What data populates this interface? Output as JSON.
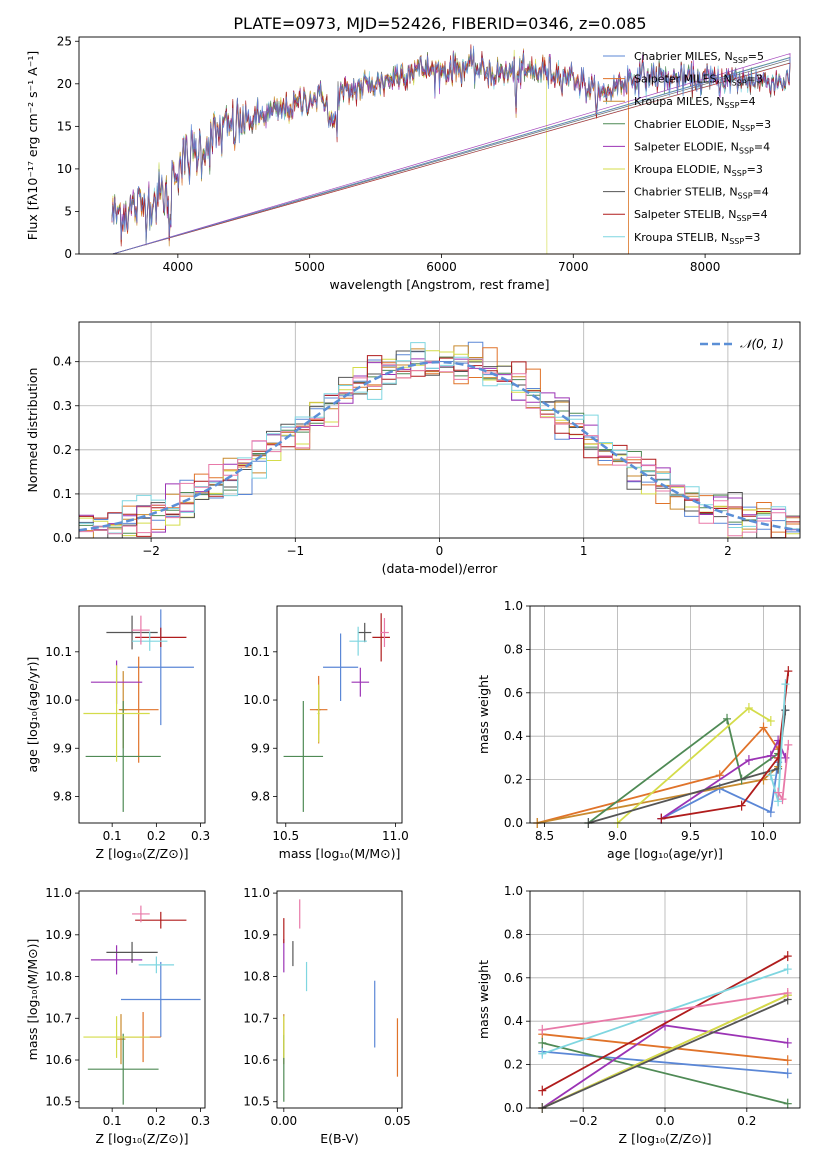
{
  "figure_title": "PLATE=0973, MJD=52426, FIBERID=0346, z=0.085",
  "series": [
    {
      "label": "Chabrier MILES",
      "nssp": "5",
      "color": "#5b87d6"
    },
    {
      "label": "Salpeter MILES",
      "nssp": "3",
      "color": "#e0732a"
    },
    {
      "label": "Kroupa MILES",
      "nssp": "4",
      "color": "#c98a2e"
    },
    {
      "label": "Chabrier ELODIE",
      "nssp": "3",
      "color": "#4f8a55"
    },
    {
      "label": "Salpeter ELODIE",
      "nssp": "4",
      "color": "#9b33b5"
    },
    {
      "label": "Kroupa ELODIE",
      "nssp": "3",
      "color": "#d4dc4a"
    },
    {
      "label": "Chabrier STELIB",
      "nssp": "4",
      "color": "#555555"
    },
    {
      "label": "Salpeter STELIB",
      "nssp": "4",
      "color": "#b01c1c"
    },
    {
      "label": "Kroupa STELIB",
      "nssp": "3",
      "color": "#7fd6e0"
    }
  ],
  "nssp_label": "N",
  "nssp_sub": "SSP",
  "nssp_eq": "=",
  "extra_hist_color": "#e879a8",
  "chart_data": [
    {
      "id": "spectrum",
      "type": "line",
      "xlabel": "wavelength [Angstrom, rest frame]",
      "ylabel": "Flux [fλ10⁻¹⁷ erg cm⁻² s⁻¹ A⁻¹]",
      "xlim": [
        3250,
        8720
      ],
      "ylim": [
        0,
        25.5
      ],
      "xticks": [
        4000,
        5000,
        6000,
        7000,
        8000
      ],
      "yticks": [
        0,
        5,
        10,
        15,
        20,
        25
      ],
      "grid": false,
      "legend": "right",
      "continuum": [
        [
          3500,
          4.5
        ],
        [
          3700,
          5.5
        ],
        [
          3900,
          7
        ],
        [
          3950,
          9
        ],
        [
          4000,
          10.5
        ],
        [
          4100,
          11.5
        ],
        [
          4300,
          14
        ],
        [
          4500,
          15.5
        ],
        [
          4700,
          16.5
        ],
        [
          4900,
          17.5
        ],
        [
          5000,
          18.3
        ],
        [
          5200,
          18.5
        ],
        [
          5400,
          19.8
        ],
        [
          5600,
          20.5
        ],
        [
          5800,
          21.8
        ],
        [
          6000,
          21.5
        ],
        [
          6200,
          22
        ],
        [
          6400,
          21.2
        ],
        [
          6600,
          21.3
        ],
        [
          6800,
          21.5
        ],
        [
          7000,
          20.8
        ],
        [
          7200,
          18.5
        ],
        [
          7400,
          20.5
        ],
        [
          7600,
          21
        ],
        [
          7800,
          20.5
        ],
        [
          8000,
          20.5
        ],
        [
          8200,
          20.5
        ],
        [
          8400,
          20.5
        ],
        [
          8650,
          20.3
        ]
      ]
    },
    {
      "id": "residuals",
      "type": "histogram",
      "xlabel": "(data-model)/error",
      "ylabel": "Normed distribution",
      "xlim": [
        -2.5,
        2.5
      ],
      "ylim": [
        0,
        0.49
      ],
      "xticks": [
        -2,
        -1,
        0,
        1,
        2
      ],
      "xtick_labels": [
        "−2",
        "−1",
        "0",
        "1",
        "2"
      ],
      "yticks": [
        0,
        0.1,
        0.2,
        0.3,
        0.4
      ],
      "ytick_labels": [
        "0.0",
        "0.1",
        "0.2",
        "0.3",
        "0.4"
      ],
      "grid": true,
      "legend": "top-right",
      "legend_label": "𝒩(0, 1)",
      "gaussian": {
        "mean": 0,
        "sigma": 1,
        "color": "#5b8fd6"
      }
    },
    {
      "id": "age_vs_Z",
      "type": "scatter",
      "xlabel": "Z [log₁₀(Z/Z⊙)]",
      "ylabel": "age  [log₁₀(age/yr)]",
      "xlim": [
        0.025,
        0.31
      ],
      "ylim": [
        9.745,
        10.195
      ],
      "xticks": [
        0.1,
        0.2,
        0.3
      ],
      "xtick_labels": [
        "0.1",
        "0.2",
        "0.3"
      ],
      "yticks": [
        9.8,
        9.9,
        10.0,
        10.1
      ],
      "ytick_labels": [
        "9.8",
        "9.9",
        "10.0",
        "10.1"
      ],
      "points": [
        {
          "s": 0,
          "x": 0.21,
          "xe": 0.075,
          "y": 10.068,
          "ye": 0.12
        },
        {
          "s": 1,
          "x": 0.16,
          "xe": 0.045,
          "y": 9.98,
          "ye": 0.11
        },
        {
          "s": 2,
          "x": 0.125,
          "xe": 0.008,
          "y": 9.98,
          "ye": 0.08
        },
        {
          "s": 3,
          "x": 0.125,
          "xe": 0.085,
          "y": 9.883,
          "ye": 0.115
        },
        {
          "s": 4,
          "x": 0.11,
          "xe": 0.058,
          "y": 10.037,
          "ye": 0.045
        },
        {
          "s": 5,
          "x": 0.11,
          "xe": 0.075,
          "y": 9.972,
          "ye": 0.1
        },
        {
          "s": 6,
          "x": 0.145,
          "xe": 0.058,
          "y": 10.14,
          "ye": 0.035
        },
        {
          "s": 7,
          "x": 0.21,
          "xe": 0.058,
          "y": 10.13,
          "ye": 0.02
        },
        {
          "s": 8,
          "x": 0.185,
          "xe": 0.04,
          "y": 10.122,
          "ye": 0.02
        },
        {
          "s": 9,
          "x": 0.165,
          "xe": 0.02,
          "y": 10.145,
          "ye": 0.03
        }
      ]
    },
    {
      "id": "age_vs_mass",
      "type": "scatter",
      "xlabel": "mass [log₁₀(M/M⊙)]",
      "ylabel": "",
      "xlim": [
        10.46,
        11.03
      ],
      "ylim": [
        9.745,
        10.195
      ],
      "xticks": [
        10.5,
        11.0
      ],
      "xtick_labels": [
        "10.5",
        "11.0"
      ],
      "yticks": [
        9.8,
        9.9,
        10.0,
        10.1
      ],
      "ytick_labels": [
        "9.8",
        "9.9",
        "10.0",
        "10.1"
      ],
      "points": [
        {
          "s": 0,
          "x": 10.75,
          "xe": 0.08,
          "y": 10.068,
          "ye": 0.07
        },
        {
          "s": 1,
          "x": 10.65,
          "xe": 0.04,
          "y": 9.98,
          "ye": 0.07
        },
        {
          "s": 2,
          "x": 10.65,
          "xe": 0.01,
          "y": 9.98,
          "ye": 0.05
        },
        {
          "s": 3,
          "x": 10.58,
          "xe": 0.09,
          "y": 9.883,
          "ye": 0.115
        },
        {
          "s": 4,
          "x": 10.84,
          "xe": 0.04,
          "y": 10.037,
          "ye": 0.03
        },
        {
          "s": 5,
          "x": 10.65,
          "xe": 0.005,
          "y": 9.972,
          "ye": 0.06
        },
        {
          "s": 6,
          "x": 10.86,
          "xe": 0.03,
          "y": 10.14,
          "ye": 0.02
        },
        {
          "s": 7,
          "x": 10.935,
          "xe": 0.04,
          "y": 10.13,
          "ye": 0.05
        },
        {
          "s": 8,
          "x": 10.83,
          "xe": 0.04,
          "y": 10.122,
          "ye": 0.03
        },
        {
          "s": 9,
          "x": 10.95,
          "xe": 0.02,
          "y": 10.14,
          "ye": 0.03
        }
      ]
    },
    {
      "id": "weight_vs_age",
      "type": "line",
      "xlabel": "age  [log₁₀(age/yr)]",
      "ylabel": "mass weight",
      "xlim": [
        8.4,
        10.25
      ],
      "ylim": [
        0,
        1.0
      ],
      "xticks": [
        8.5,
        9.0,
        9.5,
        10.0
      ],
      "xtick_labels": [
        "8.5",
        "9.0",
        "9.5",
        "10.0"
      ],
      "yticks": [
        0,
        0.2,
        0.4,
        0.6,
        0.8,
        1.0
      ],
      "ytick_labels": [
        "0.0",
        "0.2",
        "0.4",
        "0.6",
        "0.8",
        "1.0"
      ],
      "grid": true,
      "series": [
        {
          "s": 0,
          "x": [
            9.3,
            9.7,
            10.05,
            10.1,
            10.15
          ],
          "y": [
            0.02,
            0.16,
            0.05,
            0.28,
            0.52
          ]
        },
        {
          "s": 1,
          "x": [
            8.45,
            9.7,
            10.0,
            10.1
          ],
          "y": [
            0.0,
            0.22,
            0.44,
            0.34
          ]
        },
        {
          "s": 2,
          "x": [
            8.45,
            10.0,
            10.1
          ],
          "y": [
            0.0,
            0.2,
            0.26
          ]
        },
        {
          "s": 3,
          "x": [
            8.8,
            9.75,
            9.85,
            10.1
          ],
          "y": [
            0.0,
            0.48,
            0.2,
            0.32
          ]
        },
        {
          "s": 4,
          "x": [
            9.3,
            9.9,
            10.05,
            10.1,
            10.15
          ],
          "y": [
            0.02,
            0.29,
            0.31,
            0.38,
            0.3
          ]
        },
        {
          "s": 5,
          "x": [
            9.0,
            9.9,
            10.05
          ],
          "y": [
            0.0,
            0.53,
            0.47
          ]
        },
        {
          "s": 6,
          "x": [
            8.8,
            10.1,
            10.15
          ],
          "y": [
            0.0,
            0.25,
            0.52
          ]
        },
        {
          "s": 7,
          "x": [
            9.3,
            9.85,
            10.1,
            10.17
          ],
          "y": [
            0.02,
            0.08,
            0.3,
            0.7
          ]
        },
        {
          "s": 8,
          "x": [
            10.05,
            10.1,
            10.15
          ],
          "y": [
            0.22,
            0.1,
            0.64
          ]
        },
        {
          "s": 9,
          "x": [
            10.1,
            10.13,
            10.17
          ],
          "y": [
            0.14,
            0.11,
            0.36
          ]
        }
      ]
    },
    {
      "id": "mass_vs_Z",
      "type": "scatter",
      "xlabel": "Z [log₁₀(Z/Z⊙)]",
      "ylabel": "mass [log₁₀(M/M⊙)]",
      "xlim": [
        0.025,
        0.31
      ],
      "ylim": [
        10.485,
        11.005
      ],
      "xticks": [
        0.1,
        0.2,
        0.3
      ],
      "xtick_labels": [
        "0.1",
        "0.2",
        "0.3"
      ],
      "yticks": [
        10.5,
        10.6,
        10.7,
        10.8,
        10.9,
        11.0
      ],
      "ytick_labels": [
        "10.5",
        "10.6",
        "10.7",
        "10.8",
        "10.9",
        "11.0"
      ],
      "points": [
        {
          "s": 0,
          "x": 0.21,
          "xe": 0.09,
          "y": 10.745,
          "ye": 0.09
        },
        {
          "s": 1,
          "x": 0.17,
          "xe": 0.04,
          "y": 10.655,
          "ye": 0.06
        },
        {
          "s": 2,
          "x": 0.12,
          "xe": 0.01,
          "y": 10.65,
          "ye": 0.06
        },
        {
          "s": 3,
          "x": 0.125,
          "xe": 0.08,
          "y": 10.578,
          "ye": 0.085
        },
        {
          "s": 4,
          "x": 0.11,
          "xe": 0.058,
          "y": 10.84,
          "ye": 0.035
        },
        {
          "s": 5,
          "x": 0.11,
          "xe": 0.075,
          "y": 10.655,
          "ye": 0.05
        },
        {
          "s": 6,
          "x": 0.145,
          "xe": 0.058,
          "y": 10.858,
          "ye": 0.025
        },
        {
          "s": 7,
          "x": 0.21,
          "xe": 0.058,
          "y": 10.935,
          "ye": 0.02
        },
        {
          "s": 8,
          "x": 0.2,
          "xe": 0.04,
          "y": 10.828,
          "ye": 0.02
        },
        {
          "s": 9,
          "x": 0.165,
          "xe": 0.02,
          "y": 10.95,
          "ye": 0.02
        }
      ]
    },
    {
      "id": "mass_vs_ebv",
      "type": "scatter",
      "xlabel": "E(B-V)",
      "ylabel": "",
      "xlim": [
        -0.003,
        0.052
      ],
      "ylim": [
        10.485,
        11.005
      ],
      "xticks": [
        0.0,
        0.05
      ],
      "xtick_labels": [
        "0.00",
        "0.05"
      ],
      "yticks": [
        10.5,
        10.6,
        10.7,
        10.8,
        10.9,
        11.0
      ],
      "ytick_labels": [
        "10.5",
        "10.6",
        "10.7",
        "10.8",
        "10.9",
        "11.0"
      ],
      "points": [
        {
          "s": 0,
          "x": 0.04,
          "xe": 0,
          "y": 10.71,
          "ye": 0.08
        },
        {
          "s": 1,
          "x": 0.05,
          "xe": 0,
          "y": 10.63,
          "ye": 0.07
        },
        {
          "s": 2,
          "x": 0.0,
          "xe": 0,
          "y": 10.65,
          "ye": 0.06
        },
        {
          "s": 3,
          "x": 0.0,
          "xe": 0,
          "y": 10.58,
          "ye": 0.08
        },
        {
          "s": 4,
          "x": 0.0,
          "xe": 0,
          "y": 10.85,
          "ye": 0.04
        },
        {
          "s": 5,
          "x": 0.0,
          "xe": 0,
          "y": 10.655,
          "ye": 0.05
        },
        {
          "s": 6,
          "x": 0.004,
          "xe": 0,
          "y": 10.855,
          "ye": 0.03
        },
        {
          "s": 7,
          "x": 0.0,
          "xe": 0,
          "y": 10.91,
          "ye": 0.03
        },
        {
          "s": 8,
          "x": 0.01,
          "xe": 0,
          "y": 10.8,
          "ye": 0.035
        },
        {
          "s": 9,
          "x": 0.007,
          "xe": 0,
          "y": 10.95,
          "ye": 0.035
        }
      ]
    },
    {
      "id": "weight_vs_Z",
      "type": "line",
      "xlabel": "Z [log₁₀(Z/Z⊙)]",
      "ylabel": "mass weight",
      "xlim": [
        -0.33,
        0.33
      ],
      "ylim": [
        0,
        1.0
      ],
      "xticks": [
        -0.2,
        0.0,
        0.2
      ],
      "xtick_labels": [
        "−0.2",
        "0.0",
        "0.2"
      ],
      "yticks": [
        0,
        0.2,
        0.4,
        0.6,
        0.8,
        1.0
      ],
      "ytick_labels": [
        "0.0",
        "0.2",
        "0.4",
        "0.6",
        "0.8",
        "1.0"
      ],
      "grid": true,
      "series": [
        {
          "s": 0,
          "x": [
            -0.3,
            0.3
          ],
          "y": [
            0.26,
            0.16
          ]
        },
        {
          "s": 1,
          "x": [
            -0.3,
            0.3
          ],
          "y": [
            0.34,
            0.22
          ]
        },
        {
          "s": 2,
          "x": [
            -0.3,
            0.3
          ],
          "y": [
            0.0,
            0.52
          ]
        },
        {
          "s": 3,
          "x": [
            -0.3,
            0.3
          ],
          "y": [
            0.3,
            0.02
          ]
        },
        {
          "s": 4,
          "x": [
            -0.3,
            0.0,
            0.3
          ],
          "y": [
            0.0,
            0.38,
            0.3
          ]
        },
        {
          "s": 5,
          "x": [
            -0.3,
            0.3
          ],
          "y": [
            0.0,
            0.52
          ]
        },
        {
          "s": 6,
          "x": [
            -0.3,
            0.3
          ],
          "y": [
            0.0,
            0.5
          ]
        },
        {
          "s": 7,
          "x": [
            -0.3,
            0.3
          ],
          "y": [
            0.08,
            0.7
          ]
        },
        {
          "s": 8,
          "x": [
            -0.3,
            0.3
          ],
          "y": [
            0.25,
            0.64
          ]
        },
        {
          "s": 9,
          "x": [
            -0.3,
            0.3
          ],
          "y": [
            0.36,
            0.53
          ]
        }
      ]
    }
  ]
}
